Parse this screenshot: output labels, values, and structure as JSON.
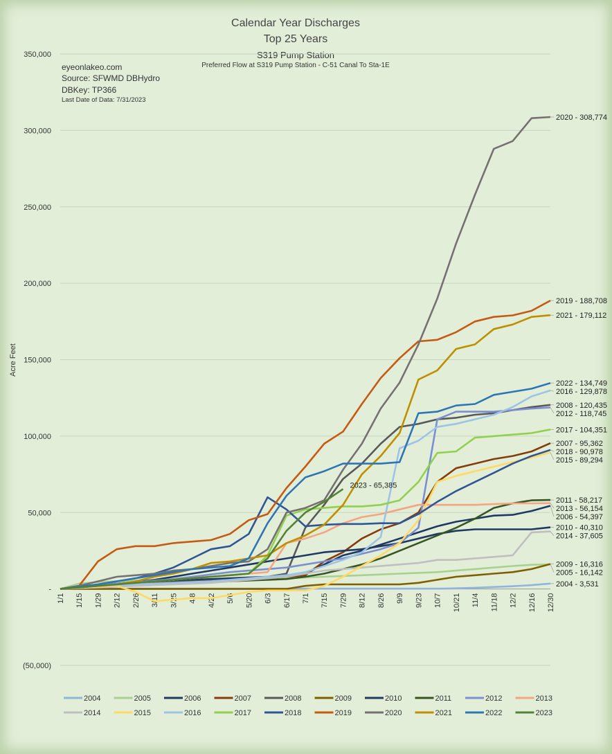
{
  "header": {
    "title_line1": "Calendar Year Discharges",
    "title_line2": "Top 25 Years",
    "station": "S319 Pump Station",
    "subtitle": "Preferred Flow at S319 Pump Station - C-51 Canal To Sta-1E"
  },
  "source": {
    "site": "eyeonlakeo.com",
    "source": "Source: SFWMD DBHydro",
    "dbkey": "DBKey: TP366",
    "last_date": "Last Date of Data: 7/31/2023"
  },
  "chart_data": {
    "type": "line",
    "title": "Calendar Year Discharges",
    "ylabel": "Acre Feet",
    "xlabel": "",
    "ylim": [
      -50000,
      350000
    ],
    "y_ticks": [
      -50000,
      0,
      50000,
      100000,
      150000,
      200000,
      250000,
      300000,
      350000
    ],
    "y_tick_labels": [
      "(50,000)",
      "-",
      "50,000",
      "100,000",
      "150,000",
      "200,000",
      "250,000",
      "300,000",
      "350,000"
    ],
    "x_days": [
      1,
      15,
      29,
      43,
      57,
      71,
      85,
      99,
      113,
      127,
      141,
      155,
      169,
      183,
      197,
      211,
      225,
      239,
      253,
      267,
      281,
      295,
      309,
      323,
      337,
      351,
      365
    ],
    "x_tick_labels": [
      "1/1",
      "1/15",
      "1/29",
      "2/12",
      "2/26",
      "3/11",
      "3/25",
      "4/8",
      "4/22",
      "5/6",
      "5/20",
      "6/3",
      "6/17",
      "7/1",
      "7/15",
      "7/29",
      "8/12",
      "8/26",
      "9/9",
      "9/23",
      "10/7",
      "10/21",
      "11/4",
      "11/18",
      "12/2",
      "12/16",
      "12/30"
    ],
    "legend_position": "bottom",
    "series": [
      {
        "name": "2004",
        "color": "#8fb4de",
        "label": "2004 - 3,531",
        "values": [
          0,
          50,
          100,
          150,
          200,
          200,
          200,
          200,
          200,
          200,
          200,
          200,
          200,
          200,
          200,
          200,
          200,
          200,
          200,
          200,
          200,
          400,
          800,
          1300,
          1800,
          2500,
          3531
        ]
      },
      {
        "name": "2005",
        "color": "#a9d18e",
        "label": "2005 - 16,142",
        "values": [
          0,
          3500,
          4500,
          5000,
          5500,
          5500,
          6000,
          6000,
          6500,
          6500,
          6800,
          7000,
          7000,
          7500,
          8000,
          8500,
          9000,
          9500,
          10000,
          10500,
          11000,
          12000,
          13000,
          14000,
          15000,
          15800,
          16142
        ]
      },
      {
        "name": "2006",
        "color": "#1f3864",
        "label": "2006 - 54,397",
        "values": [
          0,
          1500,
          2500,
          3500,
          4500,
          5000,
          5500,
          6000,
          6500,
          7000,
          7500,
          8000,
          9000,
          10000,
          16000,
          22000,
          25000,
          29000,
          33000,
          37000,
          41000,
          44000,
          46000,
          48000,
          48500,
          51000,
          54397
        ]
      },
      {
        "name": "2007",
        "color": "#843c0c",
        "label": "2007 - 95,362",
        "values": [
          0,
          1500,
          2500,
          3000,
          3500,
          4000,
          4000,
          4500,
          5000,
          5500,
          6000,
          7000,
          8000,
          9000,
          18000,
          24000,
          33000,
          39000,
          43000,
          50000,
          70000,
          79000,
          82000,
          85000,
          87000,
          90000,
          95362
        ]
      },
      {
        "name": "2008",
        "color": "#595959",
        "label": "2008 - 120,435",
        "values": [
          0,
          1500,
          2500,
          3000,
          3500,
          4000,
          4500,
          5000,
          5500,
          6000,
          7000,
          8000,
          10000,
          40000,
          55000,
          72000,
          82000,
          95000,
          106000,
          108000,
          111000,
          112000,
          114000,
          115000,
          117000,
          119000,
          120435
        ]
      },
      {
        "name": "2009",
        "color": "#7f6000",
        "label": "2009 - 16,316",
        "values": [
          0,
          0,
          0,
          0,
          0,
          0,
          0,
          0,
          0,
          0,
          0,
          0,
          0,
          2000,
          3000,
          3000,
          3000,
          3000,
          3000,
          4000,
          6000,
          8000,
          9000,
          10000,
          11000,
          13000,
          16316
        ]
      },
      {
        "name": "2010",
        "color": "#203864",
        "label": "2010 - 40,310",
        "values": [
          0,
          1500,
          2500,
          3500,
          4500,
          6000,
          8000,
          10000,
          12000,
          14000,
          16000,
          18000,
          20000,
          22000,
          24000,
          25000,
          26000,
          28000,
          30000,
          33000,
          36000,
          38000,
          39000,
          39000,
          39000,
          39000,
          40310
        ]
      },
      {
        "name": "2011",
        "color": "#375623",
        "label": "2011 - 58,217",
        "values": [
          0,
          1000,
          1500,
          2000,
          2500,
          3000,
          3500,
          4000,
          4500,
          5000,
          5500,
          6000,
          6500,
          8000,
          10000,
          13000,
          16000,
          20000,
          25000,
          30000,
          35000,
          40000,
          46000,
          53000,
          56000,
          58000,
          58217
        ]
      },
      {
        "name": "2012",
        "color": "#7b8fd0",
        "label": "2012 - 118,745",
        "values": [
          0,
          1500,
          2500,
          3500,
          4500,
          5500,
          6500,
          8000,
          9500,
          11000,
          12000,
          13000,
          14000,
          16000,
          18000,
          20000,
          23000,
          26000,
          30000,
          40000,
          111000,
          116000,
          116000,
          116000,
          117000,
          118000,
          118745
        ]
      },
      {
        "name": "2013",
        "color": "#f4a582",
        "label": "2013 - 56,154",
        "values": [
          0,
          1000,
          2000,
          3000,
          4000,
          5000,
          6000,
          7000,
          8000,
          9000,
          10000,
          11000,
          30000,
          33000,
          37000,
          43000,
          47000,
          49000,
          52000,
          55000,
          55000,
          55000,
          55000,
          55500,
          56000,
          56000,
          56154
        ]
      },
      {
        "name": "2014",
        "color": "#bfbfbf",
        "label": "2014 - 37,605",
        "values": [
          0,
          500,
          1000,
          1500,
          2000,
          2500,
          3000,
          3500,
          4000,
          5000,
          6000,
          7000,
          8000,
          10000,
          12000,
          13000,
          14000,
          15000,
          16000,
          17000,
          19000,
          19000,
          20000,
          21000,
          22000,
          37000,
          37605
        ]
      },
      {
        "name": "2015",
        "color": "#ffd966",
        "label": "2015 - 89,294",
        "values": [
          0,
          1000,
          1500,
          2000,
          -2000,
          -8000,
          -7000,
          -6000,
          -6000,
          -4000,
          -2000,
          -1000,
          -1000,
          -1000,
          2000,
          8000,
          15000,
          22000,
          30000,
          45000,
          70000,
          74000,
          77000,
          80000,
          83000,
          86000,
          89294
        ]
      },
      {
        "name": "2016",
        "color": "#9dc3e6",
        "label": "2016 - 129,878",
        "values": [
          0,
          1000,
          2000,
          2500,
          3000,
          3500,
          4000,
          4500,
          5000,
          6000,
          7000,
          8000,
          9000,
          11000,
          15000,
          19000,
          24000,
          34000,
          92000,
          97000,
          106000,
          108000,
          111000,
          114000,
          119000,
          126000,
          129878
        ]
      },
      {
        "name": "2017",
        "color": "#92d050",
        "label": "2017 - 104,351",
        "values": [
          0,
          1000,
          2000,
          3000,
          4000,
          5000,
          6000,
          7000,
          8000,
          9000,
          10000,
          22000,
          48000,
          52000,
          53000,
          54000,
          54000,
          55000,
          58000,
          70000,
          89000,
          90000,
          99000,
          100000,
          101000,
          102000,
          104351
        ]
      },
      {
        "name": "2018",
        "color": "#2f5597",
        "label": "2018 - 90,978",
        "values": [
          0,
          1500,
          3000,
          5000,
          7000,
          10000,
          14000,
          20000,
          26000,
          28000,
          36000,
          60000,
          52000,
          41000,
          42000,
          42500,
          42500,
          43000,
          43000,
          49000,
          57000,
          64000,
          70000,
          76000,
          82000,
          87000,
          90978
        ]
      },
      {
        "name": "2019",
        "color": "#c55a11",
        "label": "2019 - 188,708",
        "values": [
          0,
          2000,
          18000,
          26000,
          28000,
          28000,
          30000,
          31000,
          32000,
          36000,
          45000,
          49000,
          66000,
          80000,
          95000,
          103000,
          121000,
          138000,
          151000,
          162000,
          163000,
          168000,
          175000,
          178000,
          179000,
          182000,
          188708
        ]
      },
      {
        "name": "2020",
        "color": "#767171",
        "label": "2020 - 308,774",
        "values": [
          0,
          2000,
          5000,
          8000,
          9000,
          10000,
          12000,
          13000,
          15000,
          17000,
          18000,
          26000,
          50000,
          53000,
          58000,
          78000,
          95000,
          118000,
          135000,
          160000,
          190000,
          226000,
          258000,
          288000,
          293000,
          308000,
          308774
        ]
      },
      {
        "name": "2021",
        "color": "#bf8f00",
        "label": "2021 - 179,112",
        "values": [
          0,
          1000,
          2000,
          3000,
          5000,
          8000,
          10000,
          13000,
          17000,
          18000,
          20000,
          22000,
          30000,
          35000,
          42000,
          55000,
          75000,
          87000,
          102000,
          137000,
          143000,
          157000,
          160000,
          170000,
          173000,
          178000,
          179112
        ]
      },
      {
        "name": "2022",
        "color": "#2e75b6",
        "label": "2022 - 134,749",
        "values": [
          0,
          1500,
          3000,
          5000,
          7000,
          9000,
          11000,
          13000,
          14000,
          15000,
          20000,
          43000,
          61000,
          73000,
          77000,
          82000,
          82000,
          82000,
          83000,
          115000,
          116000,
          120000,
          121000,
          127000,
          129000,
          131000,
          134749
        ]
      },
      {
        "name": "2023",
        "color": "#548235",
        "label": "2023 - 65,385",
        "values": [
          0,
          1000,
          2000,
          3000,
          4000,
          5000,
          6000,
          7000,
          8000,
          9000,
          10000,
          20000,
          38000,
          50000,
          57000,
          65385
        ]
      }
    ]
  }
}
